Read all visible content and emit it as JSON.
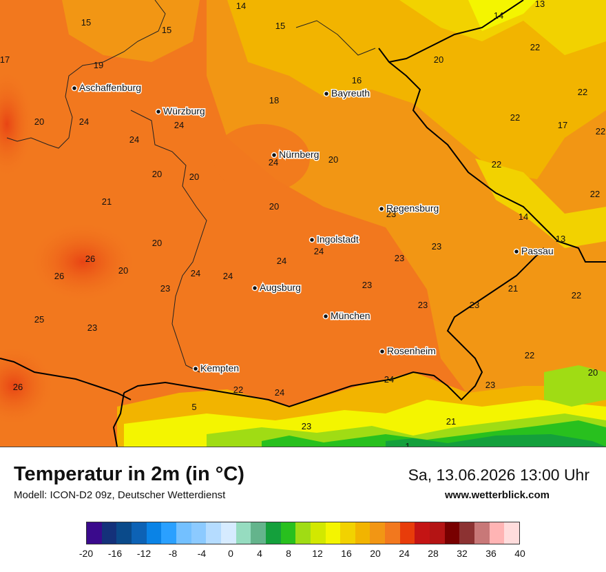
{
  "footer": {
    "title": "Temperatur in 2m (in °C)",
    "subtitle": "Modell: ICON-D2 09z, Deutscher Wetterdienst",
    "datetime": "Sa, 13.06.2026 13:00 Uhr",
    "website": "www.wetterblick.com"
  },
  "legend": {
    "colors": [
      "#3a0a8c",
      "#14317a",
      "#0a4a8a",
      "#0d62b5",
      "#0a83e6",
      "#2aa0ff",
      "#73c0ff",
      "#8ccaff",
      "#b5dcff",
      "#d6ebff",
      "#96dcc0",
      "#64b48c",
      "#14a03c",
      "#28c01e",
      "#a0dc14",
      "#d2e800",
      "#f4f500",
      "#f2d200",
      "#f2b400",
      "#f29614",
      "#f2781e",
      "#e83c0a",
      "#c41414",
      "#b41414",
      "#780000",
      "#8c3232",
      "#c87878",
      "#ffb4b4",
      "#ffdcdc"
    ],
    "ticks": [
      "-20",
      "-16",
      "-12",
      "-8",
      "-4",
      "0",
      "4",
      "8",
      "12",
      "16",
      "20",
      "24",
      "28",
      "32",
      "36",
      "40"
    ]
  },
  "map": {
    "cities": [
      {
        "name": "Aschaffenburg",
        "icon": "city-dot-icon"
      },
      {
        "name": "Würzburg",
        "icon": "city-dot-icon"
      },
      {
        "name": "Bayreuth",
        "icon": "city-dot-icon"
      },
      {
        "name": "Nürnberg",
        "icon": "city-dot-icon"
      },
      {
        "name": "Regensburg",
        "icon": "city-dot-icon"
      },
      {
        "name": "Ingolstadt",
        "icon": "city-dot-icon"
      },
      {
        "name": "Passau",
        "icon": "city-dot-icon"
      },
      {
        "name": "Augsburg",
        "icon": "city-dot-icon"
      },
      {
        "name": "München",
        "icon": "city-dot-icon"
      },
      {
        "name": "Rosenheim",
        "icon": "city-dot-icon"
      },
      {
        "name": "Kempten",
        "icon": "city-dot-icon"
      }
    ],
    "values": [
      "14",
      "13",
      "14",
      "15",
      "15",
      "15",
      "17",
      "19",
      "20",
      "22",
      "22",
      "16",
      "18",
      "22",
      "20",
      "24",
      "24",
      "17",
      "22",
      "24",
      "24",
      "20",
      "22",
      "20",
      "20",
      "20",
      "21",
      "23",
      "14",
      "22",
      "20",
      "23",
      "13",
      "26",
      "20",
      "24",
      "23",
      "26",
      "24",
      "24",
      "24",
      "23",
      "23",
      "21",
      "25",
      "23",
      "23",
      "23",
      "22",
      "24",
      "20",
      "26",
      "22",
      "22",
      "24",
      "23",
      "21",
      "1",
      "23",
      "5"
    ]
  }
}
